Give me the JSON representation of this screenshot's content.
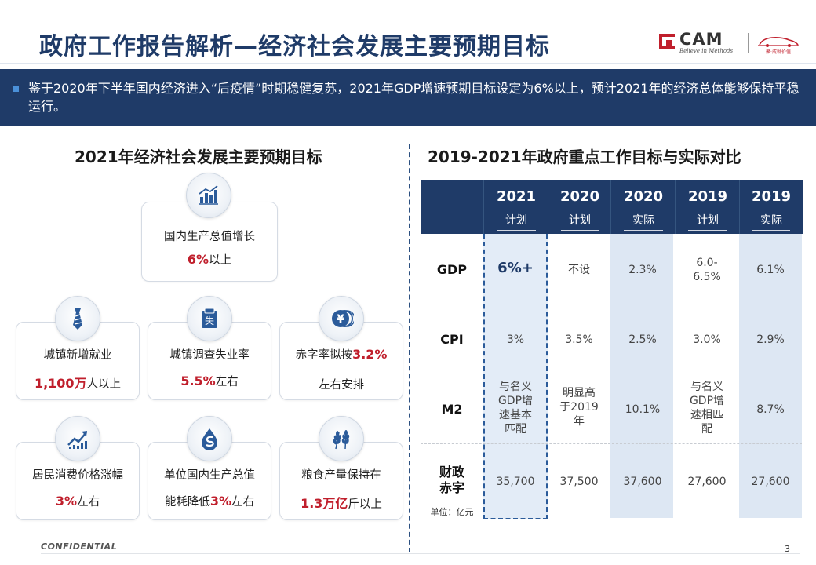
{
  "header": {
    "title": "政府工作报告解析—经济社会发展主要预期目标",
    "logo_text": "CAM",
    "logo_slogan": "Believe in Methods",
    "logo2_text": "聚·成就价值"
  },
  "banner": {
    "text": "鉴于2020年下半年国内经济进入“后疫情”时期稳健复苏，2021年GDP增速预期目标设定为6%以上，预计2021年的经济总体能够保持平稳运行。"
  },
  "left": {
    "title": "2021年经济社会发展主要预期目标",
    "cards": [
      {
        "name": "gdp",
        "l1": "国内生产总值增长",
        "hl": "6%",
        "suffix": "以上",
        "icon": "bar-chart-icon"
      },
      {
        "name": "employment",
        "l1": "城镇新增就业",
        "hl": "1,100万",
        "suffix": "人以上",
        "icon": "necktie-icon"
      },
      {
        "name": "unemployment",
        "l1": "城镇调查失业率",
        "hl": "5.5%",
        "suffix": "左右",
        "icon": "unemployment-badge-icon",
        "icon_char": "失"
      },
      {
        "name": "deficit",
        "l1a": "赤字率拟按",
        "hl": "3.2%",
        "l2": "左右安排",
        "icon": "yuan-coins-icon",
        "icon_char": "¥"
      },
      {
        "name": "cpi",
        "l1": "居民消费价格涨幅",
        "hl": "3%",
        "suffix": "左右",
        "icon": "rising-trend-icon"
      },
      {
        "name": "energy",
        "l1": "单位国内生产总值",
        "l2a": "能耗降低",
        "hl": "3%",
        "suffix": "左右",
        "icon": "water-drop-icon"
      },
      {
        "name": "grain",
        "l1": "粮食产量保持在",
        "hl": "1.3万亿",
        "suffix": "斤以上",
        "icon": "wheat-icon"
      }
    ]
  },
  "right": {
    "title": "2019-2021年政府重点工作目标与实际对比",
    "columns": [
      {
        "year": "2021",
        "kind": "计划"
      },
      {
        "year": "2020",
        "kind": "计划"
      },
      {
        "year": "2020",
        "kind": "实际"
      },
      {
        "year": "2019",
        "kind": "计划"
      },
      {
        "year": "2019",
        "kind": "实际"
      }
    ],
    "rows": [
      {
        "label": "GDP",
        "cells": [
          "6%+",
          "不设",
          "2.3%",
          "6.0-\n6.5%",
          "6.1%"
        ]
      },
      {
        "label": "CPI",
        "cells": [
          "3%",
          "3.5%",
          "2.5%",
          "3.0%",
          "2.9%"
        ]
      },
      {
        "label": "M2",
        "cells": [
          "与名义\nGDP增\n速基本\n匹配",
          "明显高\n于2019\n年",
          "10.1%",
          "与名义\nGDP增\n速相匹\n配",
          "8.7%"
        ]
      },
      {
        "label": "财政\n赤字",
        "unit": "单位：亿元",
        "cells": [
          "35,700",
          "37,500",
          "37,600",
          "27,600",
          "27,600"
        ]
      }
    ]
  },
  "footer": {
    "confidential": "CONFIDENTIAL",
    "page": "3"
  },
  "colors": {
    "navy": "#1f3b68",
    "red": "#c01f2c",
    "shade": "#dde7f3"
  }
}
